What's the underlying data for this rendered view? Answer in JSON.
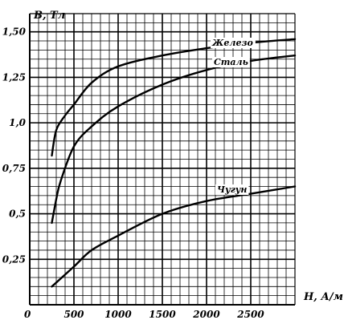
{
  "chart_data": {
    "type": "line",
    "xlabel": "H, А/м",
    "ylabel": "B, Тл",
    "origin_label": "0",
    "xlim": [
      0,
      3000
    ],
    "ylim": [
      0,
      1.6
    ],
    "grid": true,
    "x_ticks": [
      {
        "value": 500,
        "label": "500"
      },
      {
        "value": 1000,
        "label": "1000"
      },
      {
        "value": 1500,
        "label": "1500"
      },
      {
        "value": 2000,
        "label": "2000"
      },
      {
        "value": 2500,
        "label": "2500"
      }
    ],
    "y_ticks": [
      {
        "value": 0.25,
        "label": "0,25"
      },
      {
        "value": 0.5,
        "label": "0,5"
      },
      {
        "value": 0.75,
        "label": "0,75"
      },
      {
        "value": 1.0,
        "label": "1,0"
      },
      {
        "value": 1.25,
        "label": "1,25"
      },
      {
        "value": 1.5,
        "label": "1,50"
      }
    ],
    "series": [
      {
        "name": "Железо",
        "points": [
          [
            250,
            0.82
          ],
          [
            300,
            0.96
          ],
          [
            400,
            1.04
          ],
          [
            500,
            1.1
          ],
          [
            700,
            1.22
          ],
          [
            1000,
            1.31
          ],
          [
            1500,
            1.37
          ],
          [
            2000,
            1.41
          ],
          [
            2500,
            1.44
          ],
          [
            3000,
            1.46
          ]
        ]
      },
      {
        "name": "Сталь",
        "points": [
          [
            250,
            0.45
          ],
          [
            300,
            0.58
          ],
          [
            350,
            0.68
          ],
          [
            500,
            0.87
          ],
          [
            700,
            0.98
          ],
          [
            1000,
            1.09
          ],
          [
            1500,
            1.21
          ],
          [
            2000,
            1.29
          ],
          [
            2500,
            1.34
          ],
          [
            3000,
            1.37
          ]
        ]
      },
      {
        "name": "Чугун",
        "points": [
          [
            250,
            0.1
          ],
          [
            500,
            0.21
          ],
          [
            700,
            0.3
          ],
          [
            1000,
            0.38
          ],
          [
            1500,
            0.5
          ],
          [
            2000,
            0.57
          ],
          [
            2500,
            0.61
          ],
          [
            3000,
            0.65
          ]
        ]
      }
    ]
  }
}
